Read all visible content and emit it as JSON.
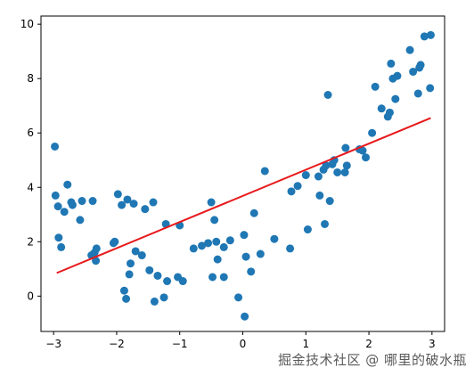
{
  "chart_data": {
    "type": "scatter",
    "title": "",
    "xlabel": "",
    "ylabel": "",
    "xlim": [
      -3.2,
      3.2
    ],
    "ylim": [
      -1.3,
      10.3
    ],
    "x_ticks": [
      -3,
      -2,
      -1,
      0,
      1,
      2,
      3
    ],
    "y_ticks": [
      0,
      2,
      4,
      6,
      8,
      10
    ],
    "grid": false,
    "legend": "none",
    "colors": {
      "points": "#1f77b4",
      "fit_line": "#e8191c",
      "axes": "#000000"
    },
    "series": [
      {
        "kind": "scatter",
        "x": [
          -2.98,
          -2.97,
          -2.93,
          -2.92,
          -2.88,
          -2.83,
          -2.78,
          -2.72,
          -2.7,
          -2.58,
          -2.55,
          -2.4,
          -2.38,
          -2.35,
          -2.33,
          -2.32,
          -2.05,
          -2.03,
          -1.98,
          -1.92,
          -1.88,
          -1.85,
          -1.83,
          -1.8,
          -1.78,
          -1.73,
          -1.7,
          -1.6,
          -1.55,
          -1.48,
          -1.42,
          -1.4,
          -1.35,
          -1.25,
          -1.22,
          -1.2,
          -1.03,
          -1.0,
          -0.95,
          -0.78,
          -0.65,
          -0.55,
          -0.5,
          -0.48,
          -0.45,
          -0.42,
          -0.4,
          -0.3,
          -0.3,
          -0.2,
          -0.07,
          0.02,
          0.03,
          0.05,
          0.13,
          0.18,
          0.28,
          0.35,
          0.5,
          0.75,
          0.77,
          0.87,
          1.0,
          1.03,
          1.2,
          1.22,
          1.28,
          1.3,
          1.32,
          1.35,
          1.38,
          1.42,
          1.45,
          1.5,
          1.62,
          1.63,
          1.65,
          1.85,
          1.9,
          1.95,
          2.05,
          2.1,
          2.2,
          2.3,
          2.33,
          2.35,
          2.38,
          2.42,
          2.45,
          2.65,
          2.7,
          2.78,
          2.8,
          2.82,
          2.88,
          2.97,
          2.98
        ],
        "y": [
          5.5,
          3.7,
          3.3,
          2.15,
          1.8,
          3.1,
          4.1,
          3.45,
          3.35,
          2.8,
          3.5,
          1.5,
          3.5,
          1.6,
          1.3,
          1.75,
          1.95,
          2.0,
          3.75,
          3.35,
          0.2,
          -0.1,
          3.55,
          0.8,
          1.2,
          3.4,
          1.65,
          1.5,
          3.2,
          0.95,
          3.45,
          -0.2,
          0.75,
          -0.05,
          2.65,
          0.55,
          0.7,
          2.6,
          0.55,
          1.75,
          1.85,
          1.95,
          3.45,
          0.7,
          2.8,
          2.0,
          1.35,
          0.7,
          1.8,
          2.05,
          -0.05,
          2.25,
          -0.75,
          1.45,
          0.9,
          3.05,
          1.55,
          4.6,
          2.1,
          1.75,
          3.85,
          4.05,
          4.45,
          2.45,
          4.4,
          3.7,
          4.65,
          2.65,
          4.8,
          7.4,
          3.5,
          4.85,
          5.0,
          4.55,
          4.55,
          5.45,
          4.8,
          5.4,
          5.35,
          5.1,
          6.0,
          7.7,
          6.9,
          6.6,
          6.75,
          8.55,
          8.0,
          7.25,
          8.1,
          9.05,
          8.25,
          7.45,
          8.4,
          8.5,
          9.55,
          7.65,
          9.6
        ]
      },
      {
        "kind": "line",
        "x": [
          -2.95,
          2.98
        ],
        "y": [
          0.85,
          6.55
        ]
      }
    ]
  },
  "watermark": {
    "text": "掘金技术社区 @ 哪里的破水瓶"
  }
}
